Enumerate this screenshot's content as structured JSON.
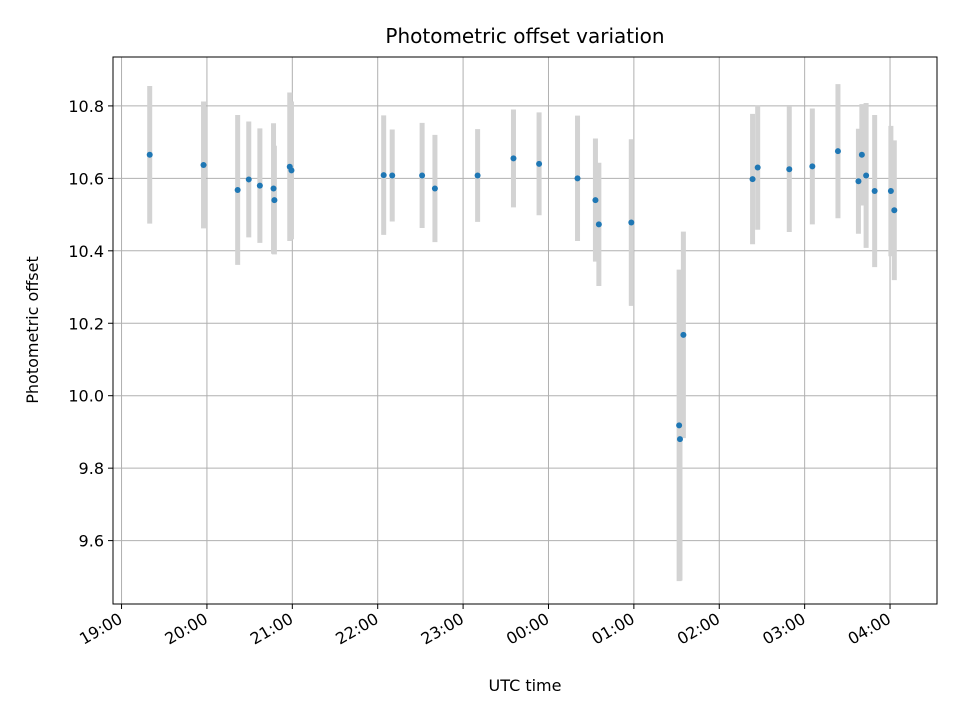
{
  "chart_data": {
    "type": "scatter",
    "title": "Photometric offset variation",
    "xlabel": "UTC time",
    "ylabel": "Photometric offset",
    "x_unit": "hours",
    "xlim": [
      -0.1,
      9.55
    ],
    "ylim": [
      9.425,
      10.935
    ],
    "grid": true,
    "x_ticks": [
      {
        "value": 0,
        "label": "19:00"
      },
      {
        "value": 1,
        "label": "20:00"
      },
      {
        "value": 2,
        "label": "21:00"
      },
      {
        "value": 3,
        "label": "22:00"
      },
      {
        "value": 4,
        "label": "23:00"
      },
      {
        "value": 5,
        "label": "00:00"
      },
      {
        "value": 6,
        "label": "01:00"
      },
      {
        "value": 7,
        "label": "02:00"
      },
      {
        "value": 8,
        "label": "03:00"
      },
      {
        "value": 9,
        "label": "04:00"
      }
    ],
    "y_ticks": [
      {
        "value": 9.6,
        "label": "9.6"
      },
      {
        "value": 9.8,
        "label": "9.8"
      },
      {
        "value": 10.0,
        "label": "10.0"
      },
      {
        "value": 10.2,
        "label": "10.2"
      },
      {
        "value": 10.4,
        "label": "10.4"
      },
      {
        "value": 10.6,
        "label": "10.6"
      },
      {
        "value": 10.8,
        "label": "10.8"
      }
    ],
    "colors": {
      "point": "#1f77b4",
      "errorbar": "#d3d3d3",
      "grid": "#b0b0b0"
    },
    "points": [
      {
        "x": 0.33,
        "y": 10.665,
        "err": 0.19
      },
      {
        "x": 0.96,
        "y": 10.637,
        "err": 0.175
      },
      {
        "x": 1.36,
        "y": 10.568,
        "err": 0.207
      },
      {
        "x": 1.49,
        "y": 10.597,
        "err": 0.16
      },
      {
        "x": 1.62,
        "y": 10.58,
        "err": 0.158
      },
      {
        "x": 1.78,
        "y": 10.572,
        "err": 0.18
      },
      {
        "x": 1.79,
        "y": 10.54,
        "err": 0.15
      },
      {
        "x": 1.97,
        "y": 10.632,
        "err": 0.205
      },
      {
        "x": 1.99,
        "y": 10.622,
        "err": 0.19
      },
      {
        "x": 3.07,
        "y": 10.609,
        "err": 0.165
      },
      {
        "x": 3.17,
        "y": 10.608,
        "err": 0.127
      },
      {
        "x": 3.52,
        "y": 10.608,
        "err": 0.145
      },
      {
        "x": 3.67,
        "y": 10.572,
        "err": 0.148
      },
      {
        "x": 4.17,
        "y": 10.608,
        "err": 0.128
      },
      {
        "x": 4.59,
        "y": 10.655,
        "err": 0.135
      },
      {
        "x": 4.89,
        "y": 10.64,
        "err": 0.142
      },
      {
        "x": 5.34,
        "y": 10.6,
        "err": 0.173
      },
      {
        "x": 5.55,
        "y": 10.54,
        "err": 0.17
      },
      {
        "x": 5.59,
        "y": 10.473,
        "err": 0.17
      },
      {
        "x": 5.97,
        "y": 10.478,
        "err": 0.23
      },
      {
        "x": 6.53,
        "y": 9.918,
        "err": 0.43
      },
      {
        "x": 6.54,
        "y": 9.88,
        "err": 0.39
      },
      {
        "x": 6.58,
        "y": 10.168,
        "err": 0.285
      },
      {
        "x": 7.39,
        "y": 10.598,
        "err": 0.18
      },
      {
        "x": 7.45,
        "y": 10.63,
        "err": 0.172
      },
      {
        "x": 7.82,
        "y": 10.625,
        "err": 0.173
      },
      {
        "x": 8.09,
        "y": 10.633,
        "err": 0.16
      },
      {
        "x": 8.39,
        "y": 10.675,
        "err": 0.185
      },
      {
        "x": 8.63,
        "y": 10.592,
        "err": 0.145
      },
      {
        "x": 8.67,
        "y": 10.665,
        "err": 0.14
      },
      {
        "x": 8.72,
        "y": 10.608,
        "err": 0.2
      },
      {
        "x": 8.82,
        "y": 10.565,
        "err": 0.21
      },
      {
        "x": 9.01,
        "y": 10.565,
        "err": 0.18
      },
      {
        "x": 9.05,
        "y": 10.512,
        "err": 0.193
      }
    ]
  }
}
